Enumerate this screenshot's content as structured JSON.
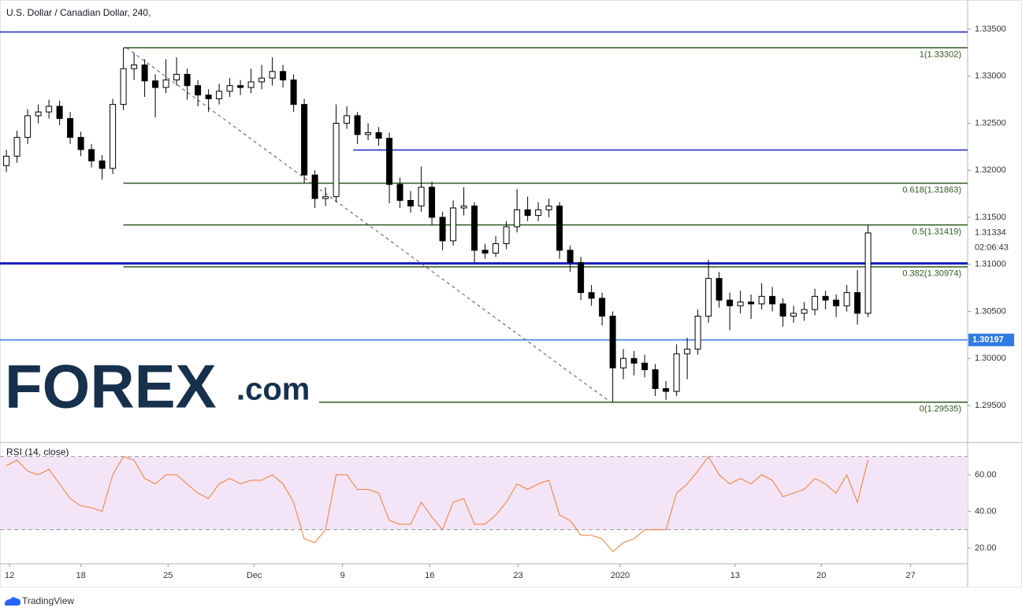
{
  "chart_data": [
    {
      "type": "candlestick",
      "title": "U.S. Dollar / Canadian Dollar, 240,",
      "xlim": [
        -0.6,
        90.36
      ],
      "ylim": [
        1.29123,
        1.33768
      ],
      "yticks": [
        {
          "value": 1.335,
          "label": "1.33500"
        },
        {
          "value": 1.33,
          "label": "1.33000"
        },
        {
          "value": 1.325,
          "label": "1.32500"
        },
        {
          "value": 1.32,
          "label": "1.32000"
        },
        {
          "value": 1.315,
          "label": "1.31500"
        },
        {
          "value": 1.31,
          "label": "1.31000"
        },
        {
          "value": 1.305,
          "label": "1.30500"
        },
        {
          "value": 1.3,
          "label": "1.30000"
        },
        {
          "value": 1.295,
          "label": "1.29500"
        }
      ],
      "up_color": "#ffffff",
      "down_color": "#000000",
      "wick_color": "#000000",
      "candles": [
        [
          1.3205,
          1.3222,
          1.3198,
          1.3215
        ],
        [
          1.3215,
          1.3242,
          1.3208,
          1.3235
        ],
        [
          1.3235,
          1.3265,
          1.3228,
          1.3258
        ],
        [
          1.3258,
          1.327,
          1.325,
          1.3262
        ],
        [
          1.3262,
          1.3275,
          1.3255,
          1.3268
        ],
        [
          1.3268,
          1.3274,
          1.3248,
          1.3255
        ],
        [
          1.3255,
          1.3262,
          1.3228,
          1.3235
        ],
        [
          1.3235,
          1.3241,
          1.3215,
          1.3222
        ],
        [
          1.3222,
          1.3228,
          1.3203,
          1.321
        ],
        [
          1.321,
          1.3216,
          1.319,
          1.3202
        ],
        [
          1.3202,
          1.3276,
          1.3196,
          1.327
        ],
        [
          1.327,
          1.333,
          1.3264,
          1.3308
        ],
        [
          1.3308,
          1.3325,
          1.3296,
          1.3312
        ],
        [
          1.3312,
          1.3318,
          1.3278,
          1.3295
        ],
        [
          1.3295,
          1.3302,
          1.3256,
          1.3288
        ],
        [
          1.3288,
          1.3318,
          1.3282,
          1.3296
        ],
        [
          1.3296,
          1.332,
          1.329,
          1.3302
        ],
        [
          1.3302,
          1.3308,
          1.3275,
          1.329
        ],
        [
          1.329,
          1.3296,
          1.3268,
          1.328
        ],
        [
          1.328,
          1.3286,
          1.3262,
          1.3276
        ],
        [
          1.3276,
          1.3292,
          1.327,
          1.3284
        ],
        [
          1.3284,
          1.3298,
          1.3278,
          1.329
        ],
        [
          1.329,
          1.3296,
          1.328,
          1.3288
        ],
        [
          1.3288,
          1.3308,
          1.3282,
          1.3294
        ],
        [
          1.3294,
          1.3312,
          1.3286,
          1.3298
        ],
        [
          1.3298,
          1.332,
          1.329,
          1.3305
        ],
        [
          1.3305,
          1.3312,
          1.3288,
          1.3296
        ],
        [
          1.3296,
          1.3302,
          1.3262,
          1.327
        ],
        [
          1.327,
          1.3276,
          1.3186,
          1.3195
        ],
        [
          1.3195,
          1.32,
          1.316,
          1.317
        ],
        [
          1.317,
          1.3182,
          1.3162,
          1.3172
        ],
        [
          1.3172,
          1.327,
          1.3166,
          1.325
        ],
        [
          1.325,
          1.3268,
          1.3244,
          1.3258
        ],
        [
          1.3258,
          1.3262,
          1.3228,
          1.3238
        ],
        [
          1.3238,
          1.325,
          1.3232,
          1.324
        ],
        [
          1.324,
          1.3246,
          1.3226,
          1.3234
        ],
        [
          1.3234,
          1.324,
          1.3165,
          1.3185
        ],
        [
          1.3185,
          1.3192,
          1.316,
          1.3168
        ],
        [
          1.3168,
          1.3178,
          1.3155,
          1.3162
        ],
        [
          1.3162,
          1.3204,
          1.3156,
          1.3182
        ],
        [
          1.3182,
          1.3188,
          1.3142,
          1.315
        ],
        [
          1.315,
          1.3156,
          1.3115,
          1.3125
        ],
        [
          1.3125,
          1.3168,
          1.312,
          1.316
        ],
        [
          1.316,
          1.3182,
          1.3152,
          1.3162
        ],
        [
          1.3162,
          1.3166,
          1.3102,
          1.3115
        ],
        [
          1.3115,
          1.3122,
          1.3106,
          1.3112
        ],
        [
          1.3112,
          1.313,
          1.3108,
          1.3122
        ],
        [
          1.3122,
          1.3146,
          1.3116,
          1.314
        ],
        [
          1.314,
          1.318,
          1.3134,
          1.3158
        ],
        [
          1.3158,
          1.3172,
          1.3146,
          1.3152
        ],
        [
          1.3152,
          1.3166,
          1.3146,
          1.3158
        ],
        [
          1.3158,
          1.317,
          1.315,
          1.3162
        ],
        [
          1.3162,
          1.3166,
          1.3106,
          1.3115
        ],
        [
          1.3115,
          1.312,
          1.3092,
          1.3102
        ],
        [
          1.3102,
          1.3108,
          1.3062,
          1.307
        ],
        [
          1.307,
          1.3078,
          1.3056,
          1.3064
        ],
        [
          1.3064,
          1.307,
          1.3035,
          1.3045
        ],
        [
          1.3045,
          1.305,
          1.2954,
          1.299
        ],
        [
          1.299,
          1.301,
          1.2978,
          1.3
        ],
        [
          1.3,
          1.3008,
          1.2982,
          1.2995
        ],
        [
          1.2995,
          1.3004,
          1.298,
          1.2988
        ],
        [
          1.2988,
          1.2994,
          1.296,
          1.2968
        ],
        [
          1.2968,
          1.2976,
          1.2956,
          1.2965
        ],
        [
          1.2965,
          1.3015,
          1.296,
          1.3005
        ],
        [
          1.3005,
          1.3022,
          1.2978,
          1.301
        ],
        [
          1.301,
          1.3052,
          1.3004,
          1.3045
        ],
        [
          1.3045,
          1.3105,
          1.3038,
          1.3085
        ],
        [
          1.3085,
          1.3092,
          1.3054,
          1.3062
        ],
        [
          1.3062,
          1.307,
          1.303,
          1.3056
        ],
        [
          1.3056,
          1.3072,
          1.3048,
          1.306
        ],
        [
          1.306,
          1.3068,
          1.3042,
          1.3058
        ],
        [
          1.3058,
          1.308,
          1.3052,
          1.3066
        ],
        [
          1.3066,
          1.3076,
          1.305,
          1.3058
        ],
        [
          1.3058,
          1.3064,
          1.3034,
          1.3045
        ],
        [
          1.3045,
          1.3056,
          1.3038,
          1.3048
        ],
        [
          1.3048,
          1.306,
          1.304,
          1.3052
        ],
        [
          1.3052,
          1.3074,
          1.3046,
          1.3066
        ],
        [
          1.3066,
          1.3072,
          1.3052,
          1.3062
        ],
        [
          1.3062,
          1.3068,
          1.3044,
          1.3056
        ],
        [
          1.3056,
          1.3078,
          1.305,
          1.307
        ],
        [
          1.307,
          1.3094,
          1.3036,
          1.3048
        ],
        [
          1.3048,
          1.3142,
          1.3044,
          1.31334
        ]
      ],
      "hlines": [
        {
          "value": 1.3347,
          "color": "#1c20c4",
          "width": 1.5,
          "from": -0.6
        },
        {
          "value": 1.32215,
          "color": "#1c20c4",
          "width": 1.5,
          "from": 32.6
        },
        {
          "value": 1.3101,
          "color": "#1c20c4",
          "width": 3,
          "from": -0.6
        },
        {
          "value": 1.30197,
          "color": "#2f7ae0",
          "width": 1.5,
          "from": -0.6,
          "label": "1.30197"
        }
      ],
      "fib_color": "#2d5a1e",
      "fib_anchor": [
        11.3,
        56.8
      ],
      "fib_levels": [
        {
          "value": 1.33302,
          "label": "1(1.33302)",
          "from": 11
        },
        {
          "value": 1.31863,
          "label": "0.618(1.31863)",
          "from": 11
        },
        {
          "value": 1.31419,
          "label": "0.5(1.31419)",
          "from": 11
        },
        {
          "value": 1.30974,
          "label": "0.382(1.30974)",
          "from": 11
        },
        {
          "value": 1.29535,
          "label": "0(1.29535)",
          "from": 29.4
        }
      ],
      "last_price": {
        "value": 1.31334,
        "label": "1.31334"
      },
      "countdown": "02:06:43",
      "watermark": {
        "brand": "FOREX",
        "domain": ".com"
      }
    },
    {
      "type": "line",
      "title": "RSI (14, close)",
      "xlim": [
        -0.6,
        90.36
      ],
      "ylim": [
        11.8,
        76.3
      ],
      "yticks": [
        {
          "value": 60,
          "label": "60.00"
        },
        {
          "value": 40,
          "label": "40.00"
        },
        {
          "value": 20,
          "label": "20.00"
        }
      ],
      "band": [
        30,
        70
      ],
      "band_color": "#f3e5f7",
      "xticks": [
        {
          "value": 0.3,
          "label": "12"
        },
        {
          "value": 7.0,
          "label": "18"
        },
        {
          "value": 15.2,
          "label": "25"
        },
        {
          "value": 23.3,
          "label": "Dec"
        },
        {
          "value": 31.6,
          "label": "9"
        },
        {
          "value": 39.8,
          "label": "16"
        },
        {
          "value": 48.1,
          "label": "23"
        },
        {
          "value": 57.7,
          "label": "2020"
        },
        {
          "value": 68.5,
          "label": "13"
        },
        {
          "value": 76.6,
          "label": "20"
        },
        {
          "value": 85.0,
          "label": "27"
        }
      ],
      "series": [
        {
          "color": "#f47c2c",
          "values": [
            65,
            68,
            62,
            60,
            63,
            55,
            47,
            43,
            42,
            40,
            60,
            70,
            68,
            58,
            55,
            60,
            60,
            55,
            50,
            47,
            55,
            58,
            55,
            57,
            57,
            60,
            55,
            45,
            25,
            23,
            30,
            60,
            60,
            52,
            52,
            50,
            35,
            33,
            33,
            45,
            37,
            30,
            45,
            47,
            33,
            33,
            38,
            45,
            55,
            52,
            55,
            57,
            38,
            35,
            27,
            27,
            25,
            18,
            23,
            25,
            30,
            30,
            30,
            50,
            55,
            62,
            70,
            60,
            55,
            58,
            55,
            60,
            57,
            48,
            50,
            52,
            58,
            55,
            50,
            60,
            45,
            68
          ]
        }
      ]
    },
    {
      "type": "footer",
      "brand": "TradingView"
    }
  ]
}
